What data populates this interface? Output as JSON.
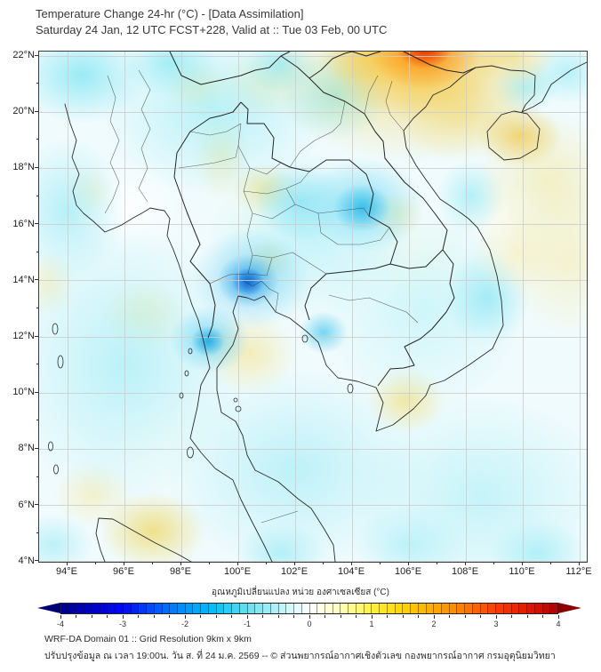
{
  "title": {
    "line1": "Temperature Change 24-hr (°C) - [Data Assimilation]",
    "line2": "Saturday 24 Jan, 12 UTC FCST+228, Valid at :: Tue 03 Feb, 00 UTC"
  },
  "axes": {
    "lat_ticks": [
      {
        "v": 22,
        "label": "22°N"
      },
      {
        "v": 20,
        "label": "20°N"
      },
      {
        "v": 18,
        "label": "18°N"
      },
      {
        "v": 16,
        "label": "16°N"
      },
      {
        "v": 14,
        "label": "14°N"
      },
      {
        "v": 12,
        "label": "12°N"
      },
      {
        "v": 10,
        "label": "10°N"
      },
      {
        "v": 8,
        "label": "8°N"
      },
      {
        "v": 6,
        "label": "6°N"
      },
      {
        "v": 4,
        "label": "4°N"
      }
    ],
    "lon_ticks": [
      {
        "v": 94,
        "label": "94°E"
      },
      {
        "v": 96,
        "label": "96°E"
      },
      {
        "v": 98,
        "label": "98°E"
      },
      {
        "v": 100,
        "label": "100°E"
      },
      {
        "v": 102,
        "label": "102°E"
      },
      {
        "v": 104,
        "label": "104°E"
      },
      {
        "v": 106,
        "label": "106°E"
      },
      {
        "v": 108,
        "label": "108°E"
      },
      {
        "v": 110,
        "label": "110°E"
      },
      {
        "v": 112,
        "label": "112°E"
      }
    ],
    "lat_minor_step": 1,
    "lon_minor_step": 1
  },
  "colorbar": {
    "label": "อุณหภูมิเปลี่ยนแปลง หน่วย องศาเซลเซียส (°C)",
    "range": [
      -4,
      4
    ],
    "segments": 64,
    "minor_tick_step": 0.25,
    "major_tick_labels": [
      "-4",
      "-3",
      "-2",
      "-1",
      "0",
      "1",
      "2",
      "3",
      "4"
    ],
    "stops": [
      [
        -4.0,
        "#00008b"
      ],
      [
        -3.5,
        "#0000c8"
      ],
      [
        -3.0,
        "#0008ff"
      ],
      [
        -2.5,
        "#0053ff"
      ],
      [
        -2.0,
        "#0095ff"
      ],
      [
        -1.5,
        "#00c4f8"
      ],
      [
        -1.0,
        "#66e0f0"
      ],
      [
        -0.5,
        "#b8f2f8"
      ],
      [
        0.0,
        "#ffffff"
      ],
      [
        0.5,
        "#ffffbe"
      ],
      [
        1.0,
        "#fff23c"
      ],
      [
        1.5,
        "#ffd400"
      ],
      [
        2.0,
        "#ffaa00"
      ],
      [
        2.5,
        "#ff7b00"
      ],
      [
        3.0,
        "#ff3c00"
      ],
      [
        3.5,
        "#e51800"
      ],
      [
        4.0,
        "#b20000"
      ]
    ],
    "arrow_left_color": "#00006e",
    "arrow_right_color": "#8b0000"
  },
  "footer": {
    "line1": "WRF-DA Domain 01 :: Grid Resolution 9km x 9km",
    "line2": "ปรับปรุงข้อมูล ณ เวลา 19:00น. วัน ส. ที่ 24 ม.ค. 2569 -- © ส่วนพยากรณ์อากาศเชิงตัวเลข กองพยากรณ์อากาศ กรมอุตุนิยมวิทยา"
  },
  "field": {
    "base": "#f0fbfd",
    "blobs": [
      [
        106.55,
        22.35,
        1.0,
        0.8,
        "#e32000",
        0.95
      ],
      [
        106.55,
        22.3,
        2.0,
        1.5,
        "#ff7a00",
        0.8
      ],
      [
        106.3,
        22.0,
        3.2,
        2.3,
        "#ffb300",
        0.6
      ],
      [
        106.0,
        21.2,
        5.0,
        3.0,
        "#f2cf4e",
        0.55
      ],
      [
        107.8,
        20.0,
        2.4,
        1.8,
        "#f2d563",
        0.5
      ],
      [
        109.9,
        19.15,
        1.5,
        1.1,
        "#eec84a",
        0.75
      ],
      [
        110.9,
        17.6,
        2.6,
        2.4,
        "#f6e796",
        0.55
      ],
      [
        111.6,
        14.8,
        2.2,
        2.8,
        "#f7ebad",
        0.6
      ],
      [
        109.8,
        15.0,
        1.6,
        1.5,
        "#f9efbd",
        0.65
      ],
      [
        104.6,
        21.9,
        1.8,
        1.0,
        "#f2d260",
        0.6
      ],
      [
        109.6,
        22.0,
        1.6,
        1.0,
        "#f5d662",
        0.55
      ],
      [
        100.35,
        13.95,
        0.55,
        0.5,
        "#0e67d2",
        0.95
      ],
      [
        100.35,
        14.0,
        1.1,
        0.95,
        "#2196e8",
        0.75
      ],
      [
        100.45,
        14.05,
        2.1,
        1.8,
        "#55c8ef",
        0.6
      ],
      [
        104.35,
        16.6,
        1.0,
        0.85,
        "#29b6e8",
        0.8
      ],
      [
        104.45,
        16.7,
        2.1,
        1.7,
        "#63d6f1",
        0.65
      ],
      [
        98.95,
        11.85,
        0.6,
        0.55,
        "#1ba6e2",
        0.85
      ],
      [
        99.0,
        11.9,
        1.4,
        1.2,
        "#58cdef",
        0.7
      ],
      [
        94.5,
        21.3,
        2.3,
        1.7,
        "#7ce5f3",
        0.75
      ],
      [
        97.6,
        21.75,
        1.7,
        1.2,
        "#8ae9f4",
        0.7
      ],
      [
        101.5,
        21.7,
        1.3,
        1.0,
        "#7de5f3",
        0.6
      ],
      [
        103.4,
        20.6,
        1.9,
        1.6,
        "#86e8f4",
        0.7
      ],
      [
        110.1,
        20.9,
        1.2,
        0.95,
        "#8deaf5",
        0.65
      ],
      [
        111.6,
        21.4,
        1.4,
        1.1,
        "#90eaf5",
        0.6
      ],
      [
        103.0,
        12.15,
        0.85,
        0.75,
        "#4cc9ee",
        0.75
      ],
      [
        108.75,
        13.4,
        1.5,
        1.7,
        "#79e2f2",
        0.6
      ],
      [
        108.2,
        17.0,
        1.2,
        1.3,
        "#8ae8f4",
        0.6
      ],
      [
        102.2,
        16.8,
        1.6,
        1.4,
        "#6fdcf2",
        0.6
      ],
      [
        99.2,
        20.0,
        4.0,
        3.0,
        "#a5eef7",
        0.75
      ],
      [
        102.5,
        15.6,
        3.6,
        3.0,
        "#b4f1f8",
        0.75
      ],
      [
        106.5,
        13.0,
        3.6,
        3.6,
        "#c2f4f9",
        0.75
      ],
      [
        96.0,
        11.0,
        4.2,
        5.0,
        "#aeeff7",
        0.8
      ],
      [
        102.0,
        7.3,
        4.6,
        3.6,
        "#aceef7",
        0.75
      ],
      [
        108.5,
        6.3,
        4.6,
        3.6,
        "#b6f1f8",
        0.75
      ],
      [
        94.0,
        16.5,
        2.0,
        2.6,
        "#9debf5",
        0.7
      ],
      [
        101.5,
        4.3,
        1.6,
        1.1,
        "#8ce8f4",
        0.6
      ],
      [
        106.0,
        4.6,
        2.0,
        1.4,
        "#9cecf6",
        0.6
      ],
      [
        110.5,
        4.3,
        1.7,
        1.2,
        "#86e7f3",
        0.6
      ],
      [
        93.5,
        4.6,
        1.4,
        1.1,
        "#98ebf5",
        0.6
      ],
      [
        98.6,
        20.85,
        1.2,
        0.95,
        "#f6e9a2",
        0.7
      ],
      [
        100.8,
        21.0,
        1.6,
        1.2,
        "#f6eaa6",
        0.6
      ],
      [
        99.4,
        18.5,
        1.0,
        1.6,
        "#f5e79c",
        0.6
      ],
      [
        100.95,
        17.25,
        1.15,
        0.95,
        "#f0de7f",
        0.75
      ],
      [
        101.1,
        14.75,
        0.9,
        0.75,
        "#f4e593",
        0.7
      ],
      [
        105.55,
        16.35,
        0.95,
        0.85,
        "#f7ecb0",
        0.7
      ],
      [
        96.7,
        12.75,
        1.5,
        1.3,
        "#f7ebab",
        0.7
      ],
      [
        100.4,
        11.4,
        1.7,
        1.5,
        "#f5e79e",
        0.7
      ],
      [
        97.0,
        5.1,
        1.9,
        1.4,
        "#eeda6e",
        0.8
      ],
      [
        94.9,
        6.4,
        1.4,
        1.2,
        "#f6ebb0",
        0.65
      ],
      [
        105.9,
        9.75,
        1.4,
        1.2,
        "#f0e083",
        0.75
      ],
      [
        93.35,
        13.9,
        0.95,
        1.15,
        "#f7ecb4",
        0.65
      ],
      [
        94.8,
        17.2,
        0.8,
        0.9,
        "#f8eec0",
        0.6
      ],
      [
        96.2,
        16.6,
        2.2,
        1.8,
        "#ffffff",
        0.85
      ],
      [
        100.6,
        16.6,
        1.5,
        1.3,
        "#fdfcf0",
        0.8
      ],
      [
        106.2,
        14.8,
        2.0,
        1.8,
        "#fbfbec",
        0.75
      ],
      [
        109.2,
        16.3,
        1.5,
        1.3,
        "#fdfdf3",
        0.7
      ],
      [
        97.3,
        8.3,
        2.2,
        2.0,
        "#fafdf8",
        0.7
      ]
    ]
  }
}
